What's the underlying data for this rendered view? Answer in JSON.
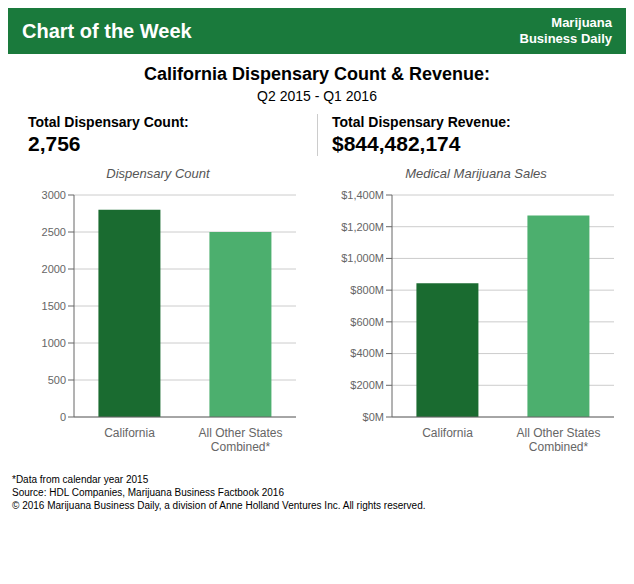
{
  "title": "California Dispensary Count & Revenue:",
  "subtitle": "Q2 2015 - Q1 2016",
  "annotations": [
    "Chart of the Week",
    "Marijuana",
    "Business Daily",
    "Total Dispensary Count:",
    "2,756",
    "Total Dispensary Revenue:",
    "$844,482,174",
    "*Data from calendar year 2015",
    "Source: HDL Companies, Marijuana Business Factbook 2016",
    "© 2016 Marijuana Business Daily, a division of Anne Holland Ventures Inc. All rights reserved."
  ],
  "chart_data": [
    {
      "type": "bar",
      "title": "Dispensary Count",
      "categories": [
        "California",
        "All Other States\nCombined*"
      ],
      "values": [
        2800,
        2500
      ],
      "colors": [
        "#1a6b30",
        "#4caf6e"
      ],
      "ylim": [
        0,
        3000
      ],
      "yticks": [
        0,
        500,
        1000,
        1500,
        2000,
        2500,
        3000
      ],
      "grid": true
    },
    {
      "type": "bar",
      "title": "Medical Marijuana Sales",
      "categories": [
        "California",
        "All Other States\nCombined*"
      ],
      "values": [
        844,
        1270
      ],
      "colors": [
        "#1a6b30",
        "#4caf6e"
      ],
      "ylim": [
        0,
        1400
      ],
      "yticks": [
        {
          "value": 0,
          "label": "$0M"
        },
        {
          "value": 200,
          "label": "$200M"
        },
        {
          "value": 400,
          "label": "$400M"
        },
        {
          "value": 600,
          "label": "$600M"
        },
        {
          "value": 800,
          "label": "$800M"
        },
        {
          "value": 1000,
          "label": "$1,000M"
        },
        {
          "value": 1200,
          "label": "$1,200M"
        },
        {
          "value": 1400,
          "label": "$1,400M"
        }
      ],
      "grid": true
    }
  ]
}
